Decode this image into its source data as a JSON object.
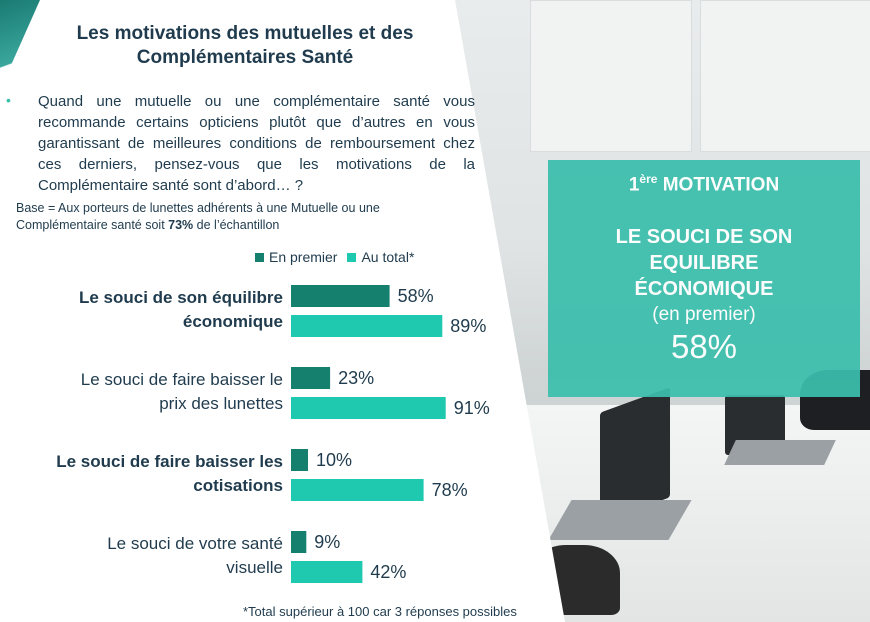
{
  "title": "Les motivations  des mutuelles  et des Complémentaires  Santé",
  "question": "Quand  une mutuelle  ou une complémentaire  santé vous recommande  certains opticiens plutôt que d’autres en vous garantissant de meilleures  conditions de remboursement  chez ces derniers, pensez-vous  que les motivations  de la Complémentaire  santé sont d’abord… ?",
  "base": {
    "prefix": "Base = Aux porteurs de lunettes adhérents à une Mutuelle ou une Complémentaire santé soit ",
    "pct": "73%",
    "suffix": " de l’échantillon"
  },
  "footnote": "*Total supérieur à 100 car 3 réponses possibles",
  "highlight_box": {
    "rank_num": "1",
    "rank_sup": "ère",
    "rank_word": " MOTIVATION",
    "line1": "LE SOUCI DE SON",
    "line2": "EQUILIBRE",
    "line3": "ÉCONOMIQUE",
    "qualifier": "(en premier)",
    "value": "58%"
  },
  "colors": {
    "dark_teal": "#16806f",
    "light_teal": "#1ec9b0",
    "box_teal": "#3bbfad",
    "text_navy": "#1f3b4d"
  },
  "chart_data": {
    "type": "bar",
    "orientation": "horizontal",
    "categories": [
      {
        "lines": [
          "Le souci de son équilibre",
          "économique"
        ],
        "bold": true
      },
      {
        "lines": [
          "Le souci de faire baisser le",
          "prix des lunettes"
        ],
        "bold": false
      },
      {
        "lines": [
          "Le souci de faire baisser les",
          "cotisations"
        ],
        "bold": true
      },
      {
        "lines": [
          "Le souci de votre santé",
          "visuelle"
        ],
        "bold": false
      }
    ],
    "series": [
      {
        "name": "En premier",
        "color": "#16806f",
        "values": [
          58,
          23,
          10,
          9
        ],
        "labels": [
          "58%",
          "23%",
          "10%",
          "9%"
        ]
      },
      {
        "name": "Au total*",
        "color": "#1ec9b0",
        "values": [
          89,
          91,
          78,
          42
        ],
        "labels": [
          "89%",
          "91%",
          "78%",
          "42%"
        ]
      }
    ],
    "xlim": [
      0,
      100
    ],
    "legend": "top"
  }
}
